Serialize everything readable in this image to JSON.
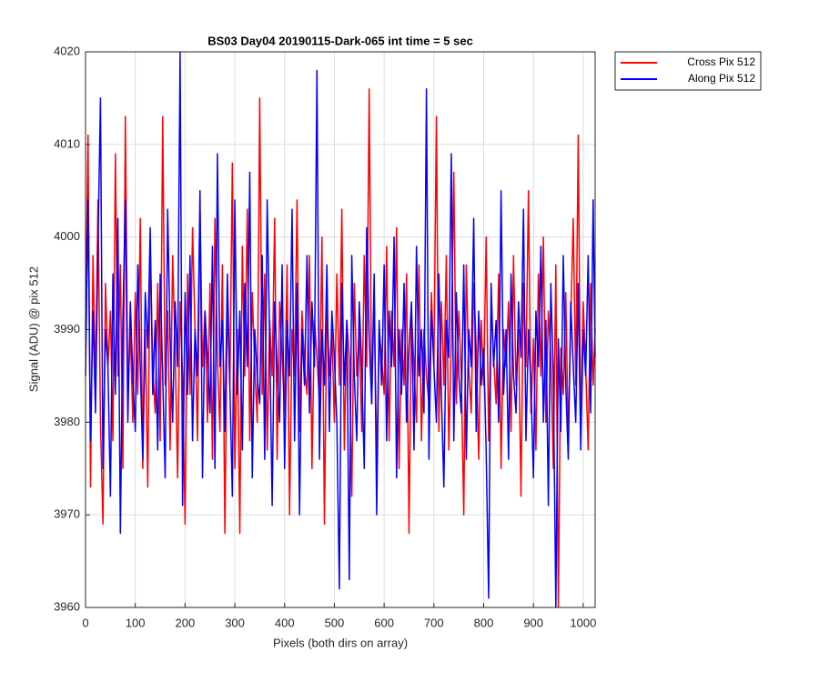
{
  "chart_data": {
    "type": "line",
    "title": "BS03 Day04 20190115-Dark-065 int time = 5 sec",
    "xlabel": "Pixels (both dirs on array)",
    "ylabel": "Signal (ADU) @ pix 512",
    "xlim": [
      0,
      1024
    ],
    "xticks": [
      0,
      100,
      200,
      300,
      400,
      500,
      600,
      700,
      800,
      900,
      1000
    ],
    "ylim": [
      3960,
      4020
    ],
    "yticks": [
      3960,
      3970,
      3980,
      3990,
      4000,
      4010,
      4020
    ],
    "grid": true,
    "legend": "outside-top-right",
    "x": [
      0,
      5,
      10,
      15,
      20,
      25,
      30,
      35,
      40,
      45,
      50,
      55,
      60,
      65,
      70,
      75,
      80,
      85,
      90,
      95,
      100,
      105,
      110,
      115,
      120,
      125,
      130,
      135,
      140,
      145,
      150,
      155,
      160,
      165,
      170,
      175,
      180,
      185,
      190,
      195,
      200,
      205,
      210,
      215,
      220,
      225,
      230,
      235,
      240,
      245,
      250,
      255,
      260,
      265,
      270,
      275,
      280,
      285,
      290,
      295,
      300,
      305,
      310,
      315,
      320,
      325,
      330,
      335,
      340,
      345,
      350,
      355,
      360,
      365,
      370,
      375,
      380,
      385,
      390,
      395,
      400,
      405,
      410,
      415,
      420,
      425,
      430,
      435,
      440,
      445,
      450,
      455,
      460,
      465,
      470,
      475,
      480,
      485,
      490,
      495,
      500,
      505,
      510,
      515,
      520,
      525,
      530,
      535,
      540,
      545,
      550,
      555,
      560,
      565,
      570,
      575,
      580,
      585,
      590,
      595,
      600,
      605,
      610,
      615,
      620,
      625,
      630,
      635,
      640,
      645,
      650,
      655,
      660,
      665,
      670,
      675,
      680,
      685,
      690,
      695,
      700,
      705,
      710,
      715,
      720,
      725,
      730,
      735,
      740,
      745,
      750,
      755,
      760,
      765,
      770,
      775,
      780,
      785,
      790,
      795,
      800,
      805,
      810,
      815,
      820,
      825,
      830,
      835,
      840,
      845,
      850,
      855,
      860,
      865,
      870,
      875,
      880,
      885,
      890,
      895,
      900,
      905,
      910,
      915,
      920,
      925,
      930,
      935,
      940,
      945,
      950,
      955,
      960,
      965,
      970,
      975,
      980,
      985,
      990,
      995,
      1000,
      1005,
      1010,
      1015,
      1020,
      1024
    ],
    "series": [
      {
        "name": "Cross Pix 512",
        "color": "#ff0000",
        "values": [
          3990,
          4011,
          3973,
          3998,
          3984,
          4004,
          3980,
          3969,
          3995,
          3986,
          3992,
          3978,
          4009,
          3985,
          3997,
          3975,
          4013,
          3983,
          3990,
          3980,
          3994,
          3983,
          4002,
          3975,
          3990,
          3973,
          3999,
          3986,
          3981,
          3995,
          3978,
          4013,
          3984,
          3992,
          3977,
          3998,
          3988,
          3974,
          3993,
          3985,
          3969,
          3996,
          3983,
          4001,
          3990,
          3978,
          4003,
          3986,
          3992,
          3980,
          3995,
          3976,
          4002,
          3987,
          3979,
          3997,
          3968,
          3993,
          3984,
          4008,
          3975,
          3990,
          3968,
          3999,
          3985,
          4003,
          3978,
          3994,
          3986,
          3980,
          4015,
          3983,
          3996,
          3977,
          3991,
          3985,
          4002,
          3976,
          3993,
          3987,
          3981,
          3997,
          3970,
          3990,
          3985,
          4004,
          3979,
          3992,
          3986,
          3983,
          3998,
          3975,
          3991,
          3987,
          3982,
          4000,
          3969,
          3993,
          3985,
          3990,
          3980,
          3996,
          3984,
          4003,
          3977,
          3991,
          3987,
          3972,
          3995,
          3985,
          3990,
          3979,
          3998,
          3986,
          4016,
          3982,
          3994,
          3975,
          3990,
          3987,
          3983,
          3999,
          3978,
          3992,
          3986,
          4001,
          3975,
          3990,
          3984,
          3996,
          3968,
          3992,
          3986,
          3980,
          3997,
          3978,
          3990,
          3985,
          3982,
          3994,
          3986,
          4013,
          3979,
          3993,
          3984,
          3998,
          3977,
          3989,
          4007,
          3982,
          3992,
          3985,
          3970,
          3997,
          3986,
          3981,
          3995,
          3988,
          3976,
          3991,
          3984,
          4000,
          3978,
          3992,
          3987,
          3982,
          3996,
          3975,
          3990,
          3986,
          3993,
          3979,
          3998,
          3984,
          3990,
          3972,
          3995,
          3986,
          4005,
          3981,
          3989,
          3977,
          3996,
          3985,
          4000,
          3980,
          3992,
          3987,
          3975,
          3997,
          3960,
          3988,
          3983,
          3994,
          3978,
          3991,
          4002,
          3984,
          4011,
          3979,
          3993,
          3986,
          3977,
          3995,
          3984,
          3990
        ]
      },
      {
        "name": "Along Pix 512",
        "color": "#0000ff",
        "values": [
          3985,
          4004,
          3978,
          3992,
          3981,
          3999,
          4015,
          3975,
          3990,
          3986,
          3972,
          3996,
          3983,
          4002,
          3968,
          3991,
          4004,
          3980,
          3993,
          3985,
          3979,
          3997,
          3986,
          3976,
          3994,
          3988,
          4001,
          3983,
          3991,
          3977,
          3996,
          3985,
          3974,
          4003,
          3989,
          3980,
          3993,
          3986,
          4020,
          3971,
          3994,
          3983,
          3998,
          3978,
          3990,
          3985,
          4005,
          3974,
          3992,
          3987,
          3981,
          3999,
          3975,
          4009,
          3986,
          3991,
          3979,
          3996,
          3984,
          3972,
          4004,
          3983,
          3992,
          3977,
          3995,
          3986,
          4007,
          3974,
          3990,
          3985,
          3982,
          3998,
          3976,
          4004,
          3989,
          3971,
          3993,
          3986,
          3980,
          3997,
          3975,
          3991,
          3985,
          4003,
          3978,
          3995,
          3970,
          3990,
          3984,
          3998,
          3981,
          3993,
          3986,
          4018,
          3976,
          3990,
          3984,
          3997,
          3979,
          3992,
          3987,
          3980,
          3962,
          3995,
          3984,
          3991,
          3963,
          3998,
          3985,
          3978,
          3993,
          3986,
          3975,
          4001,
          3989,
          3982,
          3996,
          3970,
          3991,
          3984,
          3997,
          3978,
          3992,
          3986,
          4000,
          3974,
          3990,
          3983,
          3995,
          3980,
          3988,
          3993,
          3977,
          3999,
          3985,
          3990,
          3981,
          4016,
          3976,
          3992,
          3986,
          3980,
          3996,
          3983,
          3973,
          3991,
          3987,
          4009,
          3978,
          3994,
          3985,
          3981,
          3997,
          3976,
          3990,
          3986,
          4002,
          3979,
          3992,
          3984,
          3988,
          3977,
          3961,
          3995,
          3986,
          3991,
          3980,
          4005,
          3983,
          3990,
          3976,
          3996,
          3985,
          3981,
          3993,
          3987,
          4003,
          3978,
          3990,
          3984,
          3974,
          3992,
          3986,
          3999,
          3980,
          3991,
          3971,
          3995,
          3985,
          3960,
          3989,
          3979,
          3998,
          3984,
          3976,
          3993,
          3986,
          3980,
          3995,
          3977,
          3990,
          3985,
          3998,
          3981,
          4004,
          3987
        ]
      }
    ]
  }
}
